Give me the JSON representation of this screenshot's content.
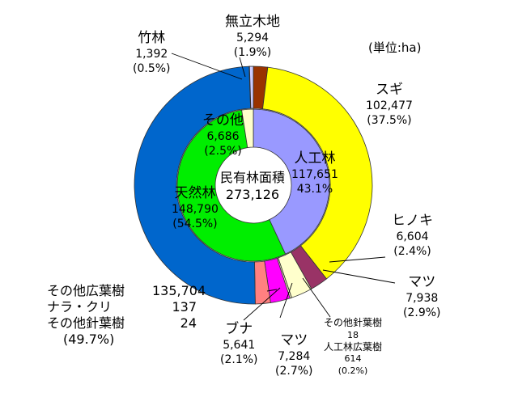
{
  "chart_data": {
    "type": "pie",
    "title": "",
    "unit_label": "(単位:ha)",
    "center": {
      "label": "民有林面積",
      "value": "273,126"
    },
    "outer_ring": [
      {
        "name": "無立木地",
        "value": 5294,
        "value_label": "5,294",
        "pct_label": "(1.9%)",
        "color": "#993300"
      },
      {
        "name": "スギ",
        "value": 102477,
        "value_label": "102,477",
        "pct_label": "(37.5%)",
        "color": "#ffff00"
      },
      {
        "name": "ヒノキ",
        "value": 6604,
        "value_label": "6,604",
        "pct_label": "(2.4%)",
        "color": "#993366"
      },
      {
        "name": "マツ",
        "value": 7938,
        "value_label": "7,938",
        "pct_label": "(2.9%)",
        "color": "#ffffcc"
      },
      {
        "name": "その他針葉樹",
        "value": 18,
        "value_label": "18",
        "color": "#ffffcc"
      },
      {
        "name": "人工林広葉樹",
        "value": 614,
        "value_label": "614",
        "pct_label": "(0.2%)",
        "color": "#ffffcc"
      },
      {
        "name": "マツ",
        "value": 7284,
        "value_label": "7,284",
        "pct_label": "(2.7%)",
        "color": "#ff00ff"
      },
      {
        "name": "ブナ",
        "value": 5641,
        "value_label": "5,641",
        "pct_label": "(2.1%)",
        "color": "#ff8080"
      },
      {
        "name": "その他広葉樹",
        "value": 135704,
        "value_label": "135,704",
        "color": "#0066cc"
      },
      {
        "name": "ナラ・クリ",
        "value": 137,
        "value_label": "137",
        "color": "#0066cc"
      },
      {
        "name": "その他針葉樹",
        "value": 24,
        "value_label": "24",
        "color": "#0066cc"
      },
      {
        "name": "竹林",
        "value": 1392,
        "value_label": "1,392",
        "pct_label": "(0.5%)",
        "color": "#ccccff"
      }
    ],
    "outer_group_pct_label": "(49.7%)",
    "inner_ring": [
      {
        "name": "人工林",
        "value": 117651,
        "value_label": "117,651",
        "pct_label": "43.1%",
        "color": "#9999ff"
      },
      {
        "name": "天然林",
        "value": 148790,
        "value_label": "148,790",
        "pct_label": "(54.5%)",
        "color": "#00ee00"
      },
      {
        "name": "その他",
        "value": 6686,
        "value_label": "6,686",
        "pct_label": "(2.5%)",
        "color": "#ffffcc"
      }
    ]
  }
}
